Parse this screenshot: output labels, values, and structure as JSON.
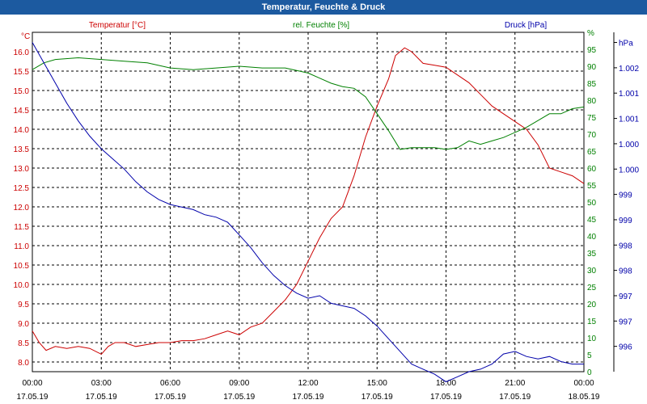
{
  "title": "Temperatur, Feuchte & Druck",
  "chart_data": {
    "type": "line",
    "title": "Temperatur, Feuchte & Druck",
    "x_time_labels": [
      "00:00",
      "03:00",
      "06:00",
      "09:00",
      "12:00",
      "15:00",
      "18:00",
      "21:00",
      "00:00"
    ],
    "x_date_labels": [
      "17.05.19",
      "17.05.19",
      "17.05.19",
      "17.05.19",
      "17.05.19",
      "17.05.19",
      "17.05.19",
      "17.05.19",
      "18.05.19"
    ],
    "x_hours": [
      0,
      3,
      6,
      9,
      12,
      15,
      18,
      21,
      24
    ],
    "grid": true,
    "axes": {
      "temperature": {
        "label": "Temperatur [°C]",
        "unit": "°C",
        "color": "#cc0000",
        "ylim": [
          7.75,
          16.5
        ],
        "ticks": [
          "8.0",
          "8.5",
          "9.0",
          "9.5",
          "10.0",
          "10.5",
          "11.0",
          "11.5",
          "12.0",
          "12.5",
          "13.0",
          "13.5",
          "14.0",
          "14.5",
          "15.0",
          "15.5",
          "16.0"
        ],
        "tick_values": [
          8.0,
          8.5,
          9.0,
          9.5,
          10.0,
          10.5,
          11.0,
          11.5,
          12.0,
          12.5,
          13.0,
          13.5,
          14.0,
          14.5,
          15.0,
          15.5,
          16.0
        ]
      },
      "humidity": {
        "label": "rel. Feuchte [%]",
        "unit": "%",
        "color": "#008000",
        "ylim": [
          0,
          100
        ],
        "ticks": [
          "0",
          "5",
          "10",
          "15",
          "20",
          "25",
          "30",
          "35",
          "40",
          "45",
          "50",
          "55",
          "60",
          "65",
          "70",
          "75",
          "80",
          "85",
          "90",
          "95",
          "%"
        ],
        "tick_values": [
          0,
          5,
          10,
          15,
          20,
          25,
          30,
          35,
          40,
          45,
          50,
          55,
          60,
          65,
          70,
          75,
          80,
          85,
          90,
          95,
          100
        ]
      },
      "pressure": {
        "label": "Druck [hPa]",
        "unit": "hPa",
        "color": "#0000aa",
        "ylim": [
          995.5,
          1002.2
        ],
        "ticks": [
          "996",
          "997",
          "997",
          "998",
          "998",
          "999",
          "999",
          "1.000",
          "1.000",
          "1.001",
          "1.001",
          "1.002",
          "hPa"
        ],
        "tick_values": [
          996.0,
          996.5,
          997.0,
          997.5,
          998.0,
          998.5,
          999.0,
          999.5,
          1000.0,
          1000.5,
          1001.0,
          1001.5,
          1002.0
        ]
      }
    },
    "series": [
      {
        "name": "Temperatur [°C]",
        "axis": "temperature",
        "color": "#cc0000",
        "x": [
          0,
          0.3,
          0.6,
          1,
          1.5,
          2,
          2.5,
          3,
          3.3,
          3.6,
          4,
          4.5,
          5,
          5.5,
          6,
          6.5,
          7,
          7.5,
          8,
          8.5,
          9,
          9.5,
          10,
          10.5,
          11,
          11.5,
          12,
          12.5,
          13,
          13.5,
          14,
          14.5,
          15,
          15.5,
          15.8,
          16.2,
          16.5,
          17,
          17.5,
          18,
          18.5,
          19,
          19.5,
          20,
          20.5,
          21,
          21.5,
          22,
          22.5,
          23,
          23.5,
          24
        ],
        "y": [
          8.8,
          8.5,
          8.3,
          8.4,
          8.35,
          8.4,
          8.35,
          8.2,
          8.4,
          8.5,
          8.5,
          8.4,
          8.45,
          8.5,
          8.5,
          8.55,
          8.55,
          8.6,
          8.7,
          8.8,
          8.7,
          8.9,
          9.0,
          9.3,
          9.6,
          10.0,
          10.6,
          11.2,
          11.7,
          12.0,
          12.8,
          13.8,
          14.6,
          15.3,
          15.9,
          16.1,
          16.0,
          15.7,
          15.65,
          15.6,
          15.4,
          15.2,
          14.9,
          14.6,
          14.4,
          14.2,
          14.0,
          13.6,
          13.0,
          12.9,
          12.8,
          12.6
        ]
      },
      {
        "name": "rel. Feuchte [%]",
        "axis": "humidity",
        "color": "#008000",
        "x": [
          0,
          0.5,
          1,
          2,
          3,
          4,
          5,
          6,
          7,
          8,
          9,
          10,
          11,
          12,
          12.5,
          13,
          13.5,
          14,
          14.5,
          15,
          15.5,
          16,
          16.5,
          17,
          17.5,
          18,
          18.5,
          19,
          19.5,
          20,
          20.5,
          21,
          21.5,
          22,
          22.5,
          23,
          23.5,
          24
        ],
        "y": [
          89,
          91,
          92,
          92.5,
          92,
          91.5,
          91,
          89.5,
          89,
          89.5,
          90,
          89.5,
          89.5,
          88,
          86.5,
          85,
          84,
          83.5,
          81,
          76,
          71,
          65.5,
          66,
          66,
          66,
          65.5,
          66,
          68,
          67,
          68,
          69,
          70.5,
          72,
          74,
          76,
          76,
          77.5,
          78
        ]
      },
      {
        "name": "Druck [hPa]",
        "axis": "pressure",
        "color": "#0000aa",
        "x": [
          0,
          0.5,
          1,
          1.5,
          2,
          2.5,
          3,
          3.5,
          4,
          4.5,
          5,
          5.5,
          6,
          6.5,
          7,
          7.5,
          8,
          8.5,
          9,
          9.5,
          10,
          10.5,
          11,
          11.5,
          12,
          12.5,
          13,
          13.5,
          14,
          14.5,
          15,
          15.5,
          16,
          16.5,
          17,
          17.5,
          18,
          18.5,
          19,
          19.5,
          20,
          20.5,
          21,
          21.5,
          22,
          22.5,
          23,
          23.5,
          24
        ],
        "y": [
          1002.0,
          1001.6,
          1001.2,
          1000.8,
          1000.45,
          1000.15,
          999.9,
          999.7,
          999.5,
          999.25,
          999.05,
          998.9,
          998.8,
          998.75,
          998.7,
          998.6,
          998.55,
          998.45,
          998.2,
          997.95,
          997.65,
          997.4,
          997.2,
          997.05,
          996.95,
          997.0,
          996.85,
          996.8,
          996.75,
          996.6,
          996.4,
          996.15,
          995.9,
          995.65,
          995.55,
          995.45,
          995.3,
          995.4,
          995.5,
          995.55,
          995.65,
          995.85,
          995.9,
          995.8,
          995.75,
          995.8,
          995.7,
          995.65,
          995.65
        ]
      }
    ]
  }
}
